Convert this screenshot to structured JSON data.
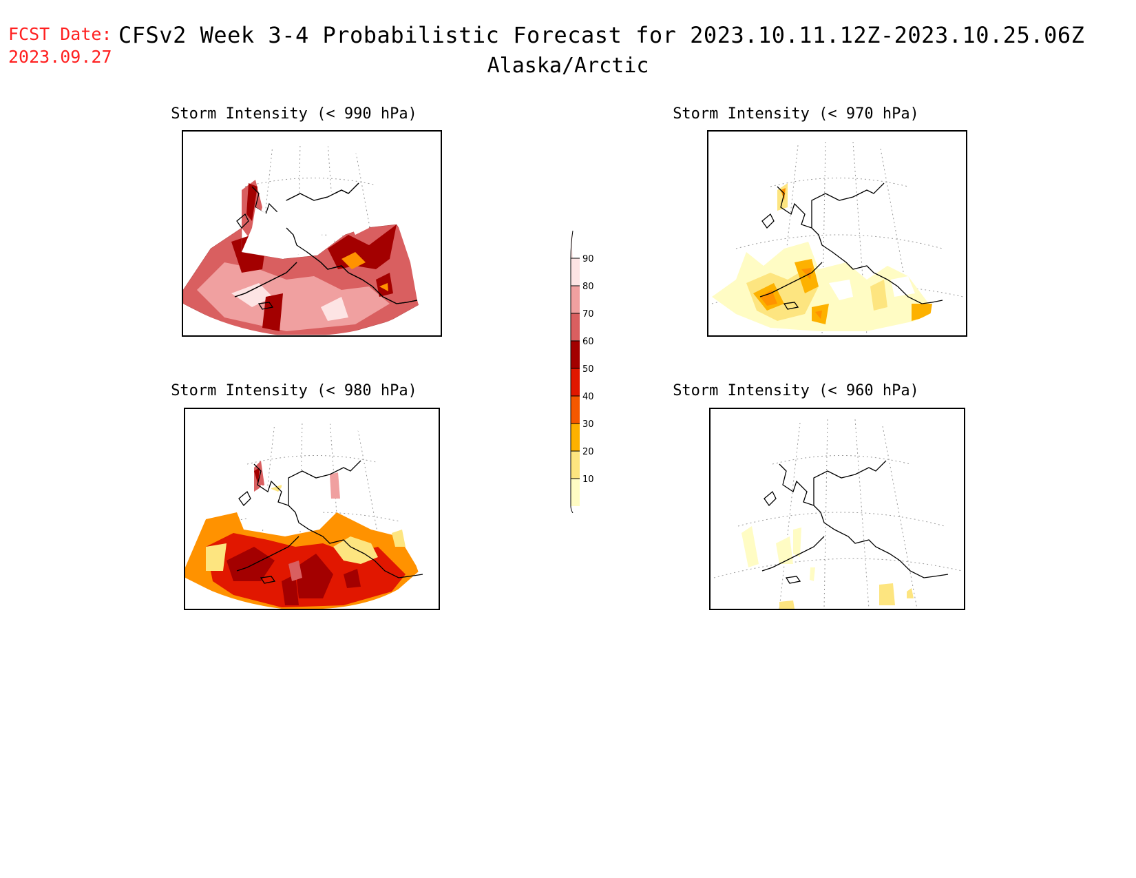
{
  "header": {
    "fcst_label": "FCST Date:",
    "fcst_date": "2023.09.27",
    "title": "CFSv2 Week 3-4 Probabilistic Forecast for 2023.10.11.12Z-2023.10.25.06Z",
    "region": "Alaska/Arctic"
  },
  "panels": [
    {
      "id": "p990",
      "title": "Storm Intensity (< 990 hPa)",
      "intensity": "high"
    },
    {
      "id": "p970",
      "title": "Storm Intensity (< 970 hPa)",
      "intensity": "low"
    },
    {
      "id": "p980",
      "title": "Storm Intensity (< 980 hPa)",
      "intensity": "medhigh"
    },
    {
      "id": "p960",
      "title": "Storm Intensity (< 960 hPa)",
      "intensity": "verylow"
    }
  ],
  "colorbar": {
    "ticks": [
      "10",
      "20",
      "30",
      "40",
      "50",
      "60",
      "70",
      "80",
      "90"
    ],
    "colors": [
      "#fffcc4",
      "#fde580",
      "#fdb100",
      "#ff9200",
      "#f45800",
      "#e11700",
      "#a30000",
      "#d95f60",
      "#f0a0a0",
      "#fde4e4"
    ]
  }
}
